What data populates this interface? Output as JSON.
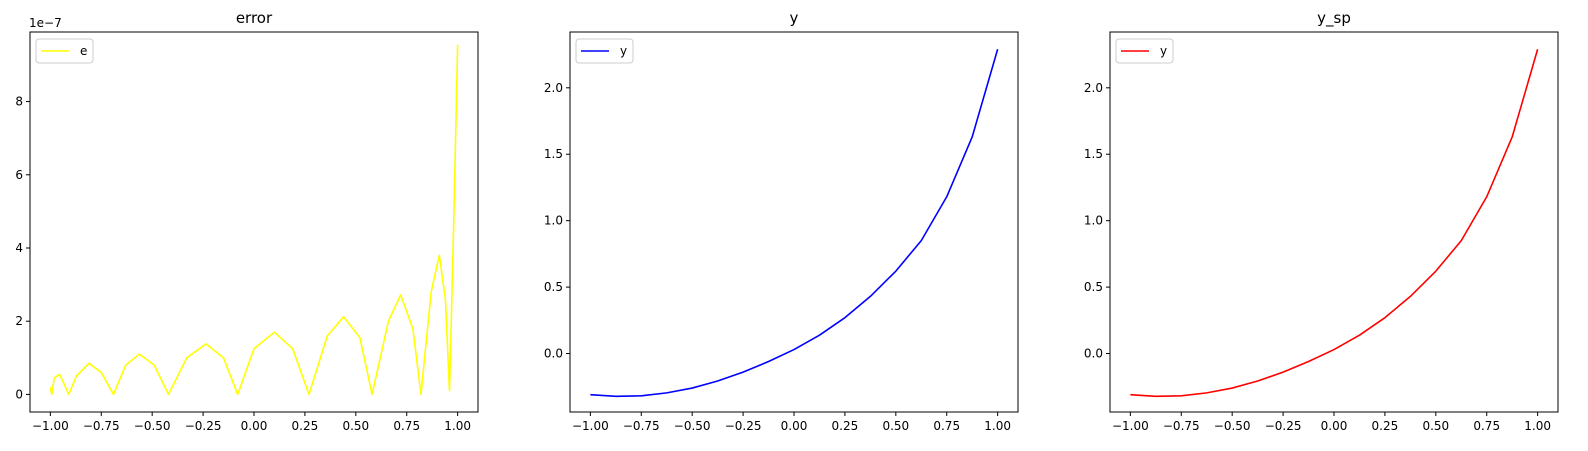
{
  "chart_data": [
    {
      "type": "line",
      "title": "error",
      "offset_text": "1e−7",
      "xlim": [
        -1.1,
        1.1
      ],
      "ylim": [
        -0.48,
        9.9
      ],
      "x_ticks": [
        -1.0,
        -0.75,
        -0.5,
        -0.25,
        0.0,
        0.25,
        0.5,
        0.75,
        1.0
      ],
      "x_tick_labels": [
        "−1.00",
        "−0.75",
        "−0.50",
        "−0.25",
        "0.00",
        "0.25",
        "0.50",
        "0.75",
        "1.00"
      ],
      "y_ticks": [
        0,
        2,
        4,
        6,
        8
      ],
      "y_tick_labels": [
        "0",
        "2",
        "4",
        "6",
        "8"
      ],
      "legend_position": "upper-left",
      "series": [
        {
          "name": "e",
          "color": "#ffff00",
          "x": [
            -1.0,
            -0.993,
            -0.981,
            -0.955,
            -0.934,
            -0.91,
            -0.872,
            -0.81,
            -0.75,
            -0.69,
            -0.63,
            -0.563,
            -0.49,
            -0.42,
            -0.33,
            -0.235,
            -0.15,
            -0.08,
            0.0,
            0.1,
            0.19,
            0.27,
            0.36,
            0.44,
            0.52,
            0.58,
            0.66,
            0.72,
            0.78,
            0.82,
            0.87,
            0.91,
            0.94,
            0.96,
            0.98,
            1.0
          ],
          "y": [
            0.2,
            0.0,
            0.45,
            0.55,
            0.3,
            0.0,
            0.5,
            0.85,
            0.6,
            0.0,
            0.8,
            1.1,
            0.8,
            0.0,
            1.0,
            1.38,
            1.0,
            0.0,
            1.25,
            1.7,
            1.25,
            0.0,
            1.6,
            2.12,
            1.55,
            0.0,
            2.0,
            2.72,
            1.8,
            0.0,
            2.8,
            3.8,
            2.6,
            0.1,
            4.5,
            9.55
          ]
        }
      ]
    },
    {
      "type": "line",
      "title": "y",
      "xlim": [
        -1.1,
        1.1
      ],
      "ylim": [
        -0.44,
        2.42
      ],
      "x_ticks": [
        -1.0,
        -0.75,
        -0.5,
        -0.25,
        0.0,
        0.25,
        0.5,
        0.75,
        1.0
      ],
      "x_tick_labels": [
        "−1.00",
        "−0.75",
        "−0.50",
        "−0.25",
        "0.00",
        "0.25",
        "0.50",
        "0.75",
        "1.00"
      ],
      "y_ticks": [
        0.0,
        0.5,
        1.0,
        1.5,
        2.0
      ],
      "y_tick_labels": [
        "0.0",
        "0.5",
        "1.0",
        "1.5",
        "2.0"
      ],
      "legend_position": "upper-left",
      "series": [
        {
          "name": "y",
          "color": "#0000ff",
          "x": [
            -1.0,
            -0.875,
            -0.75,
            -0.625,
            -0.5,
            -0.375,
            -0.25,
            -0.125,
            0.0,
            0.125,
            0.25,
            0.375,
            0.5,
            0.625,
            0.75,
            0.875,
            1.0
          ],
          "y": [
            -0.31,
            -0.322,
            -0.318,
            -0.296,
            -0.26,
            -0.207,
            -0.14,
            -0.06,
            0.03,
            0.138,
            0.27,
            0.43,
            0.62,
            0.85,
            1.18,
            1.63,
            2.29
          ]
        }
      ]
    },
    {
      "type": "line",
      "title": "y_sp",
      "xlim": [
        -1.1,
        1.1
      ],
      "ylim": [
        -0.44,
        2.42
      ],
      "x_ticks": [
        -1.0,
        -0.75,
        -0.5,
        -0.25,
        0.0,
        0.25,
        0.5,
        0.75,
        1.0
      ],
      "x_tick_labels": [
        "−1.00",
        "−0.75",
        "−0.50",
        "−0.25",
        "0.00",
        "0.25",
        "0.50",
        "0.75",
        "1.00"
      ],
      "y_ticks": [
        0.0,
        0.5,
        1.0,
        1.5,
        2.0
      ],
      "y_tick_labels": [
        "0.0",
        "0.5",
        "1.0",
        "1.5",
        "2.0"
      ],
      "legend_position": "upper-left",
      "series": [
        {
          "name": "y",
          "color": "#ff0000",
          "x": [
            -1.0,
            -0.875,
            -0.75,
            -0.625,
            -0.5,
            -0.375,
            -0.25,
            -0.125,
            0.0,
            0.125,
            0.25,
            0.375,
            0.5,
            0.625,
            0.75,
            0.875,
            1.0
          ],
          "y": [
            -0.31,
            -0.322,
            -0.318,
            -0.296,
            -0.26,
            -0.207,
            -0.14,
            -0.06,
            0.03,
            0.138,
            0.27,
            0.43,
            0.62,
            0.85,
            1.18,
            1.63,
            2.29
          ]
        }
      ]
    }
  ]
}
